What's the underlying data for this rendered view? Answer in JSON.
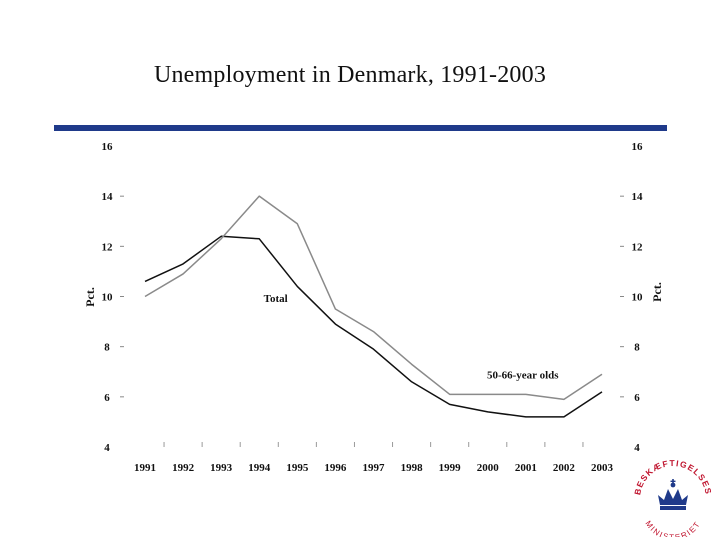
{
  "slide_title": "Unemployment in Denmark, 1991-2003",
  "logo": {
    "top_text": "BESKÆFTIGELSES",
    "bottom_text": "MINISTERIET",
    "color": "#c0152f",
    "crown_color": "#1f3a8a"
  },
  "colors": {
    "accent_rule": "#1f3a8a",
    "total_line": "#111111",
    "older_line": "#8a8a8a"
  },
  "chart_data": {
    "type": "line",
    "title": "Unemployment in Denmark, 1991-2003",
    "xlabel": "",
    "ylabel": "Pct.",
    "ylabel_right": "Pct.",
    "ylim": [
      4,
      16
    ],
    "yticks": [
      4,
      6,
      8,
      10,
      12,
      14,
      16
    ],
    "x": [
      1991,
      1992,
      1993,
      1994,
      1995,
      1996,
      1997,
      1998,
      1999,
      2000,
      2001,
      2002,
      2003
    ],
    "grid": false,
    "series": [
      {
        "name": "Total",
        "color": "#111111",
        "values": [
          10.6,
          11.3,
          12.4,
          12.3,
          10.4,
          8.9,
          7.9,
          6.6,
          5.7,
          5.4,
          5.2,
          5.2,
          6.2
        ]
      },
      {
        "name": "50-66-year olds",
        "color": "#8a8a8a",
        "values": [
          10.0,
          10.9,
          12.3,
          14.0,
          12.9,
          9.5,
          8.6,
          7.3,
          6.1,
          6.1,
          6.1,
          5.9,
          6.9
        ]
      }
    ],
    "annotations": [
      {
        "text": "Total",
        "series": "Total",
        "at_x": 1994.3
      },
      {
        "text": "50-66-year olds",
        "series": "50-66-year olds",
        "at_x": 2000.0
      }
    ]
  }
}
